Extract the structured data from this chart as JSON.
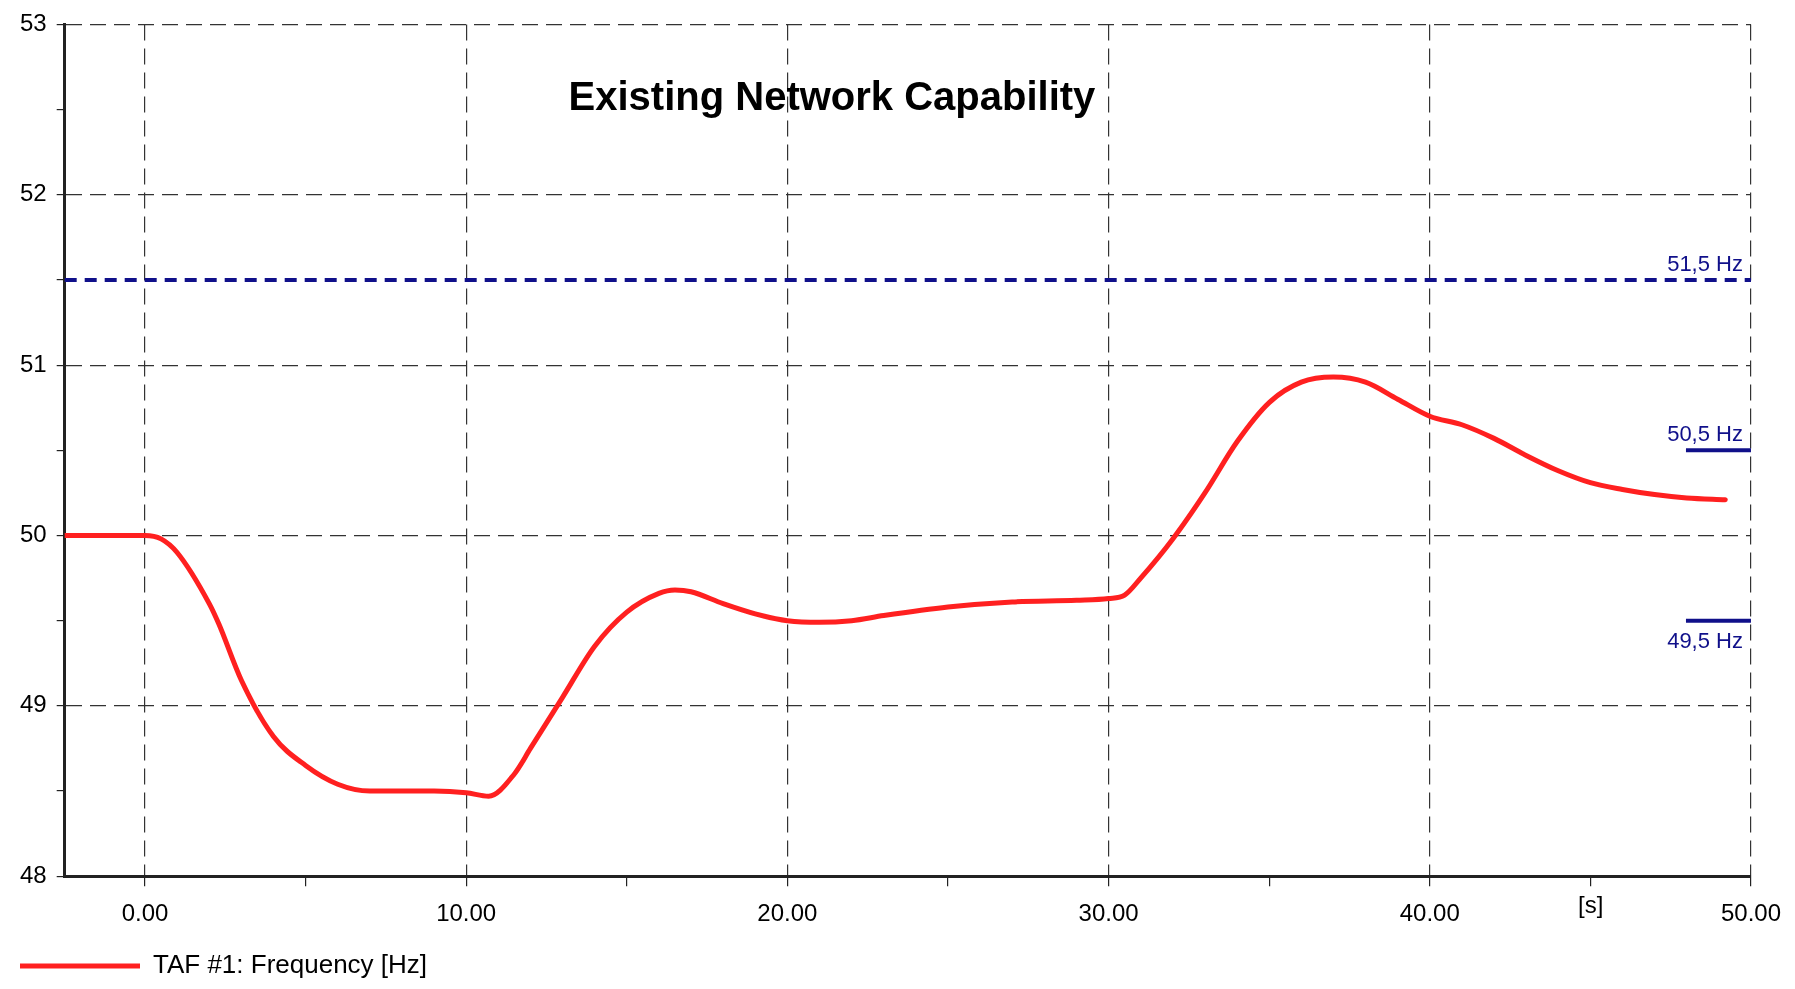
{
  "chart_data": {
    "type": "line",
    "title": "Existing Network Capability",
    "xlabel": "[s]",
    "x": [
      -2.5,
      0,
      0.5,
      1,
      2,
      2.3,
      3,
      4,
      5,
      6,
      7,
      8,
      9,
      10,
      10.7,
      11.5,
      12,
      13,
      14,
      15,
      16,
      16.5,
      17,
      18,
      19,
      20,
      21,
      22,
      23,
      25,
      27,
      29,
      30,
      30.5,
      31,
      32,
      33,
      34,
      35,
      36,
      37,
      38,
      39,
      40,
      41,
      42,
      43,
      44,
      45,
      46,
      47,
      48,
      49.2
    ],
    "series": [
      {
        "name": "TAF #1: Frequency [Hz]",
        "color": "#ff2020",
        "values": [
          50.0,
          50.0,
          49.98,
          49.9,
          49.6,
          49.48,
          49.15,
          48.82,
          48.65,
          48.54,
          48.5,
          48.5,
          48.5,
          48.49,
          48.47,
          48.6,
          48.75,
          49.05,
          49.35,
          49.55,
          49.66,
          49.68,
          49.67,
          49.6,
          49.54,
          49.5,
          49.49,
          49.5,
          49.53,
          49.58,
          49.61,
          49.62,
          49.63,
          49.65,
          49.75,
          49.98,
          50.25,
          50.55,
          50.78,
          50.9,
          50.93,
          50.9,
          50.8,
          50.7,
          50.65,
          50.57,
          50.47,
          50.38,
          50.31,
          50.27,
          50.24,
          50.22,
          50.21
        ]
      }
    ],
    "xlim": [
      -2.5,
      50
    ],
    "xticks": [
      {
        "value": 0,
        "label": "0.00"
      },
      {
        "value": 5,
        "label": null
      },
      {
        "value": 10,
        "label": "10.00"
      },
      {
        "value": 15,
        "label": null
      },
      {
        "value": 20,
        "label": "20.00"
      },
      {
        "value": 25,
        "label": null
      },
      {
        "value": 30,
        "label": "30.00"
      },
      {
        "value": 35,
        "label": null
      },
      {
        "value": 40,
        "label": "40.00"
      },
      {
        "value": 45,
        "label": null
      },
      {
        "value": 50,
        "label": "50.00"
      }
    ],
    "ylim": [
      48,
      53
    ],
    "yticks": [
      48,
      {
        "value": 48.5,
        "label": null
      },
      49,
      {
        "value": 49.5,
        "label": null
      },
      50,
      {
        "value": 50.5,
        "label": null
      },
      51,
      {
        "value": 51.5,
        "label": null
      },
      52,
      {
        "value": 52.5,
        "label": null
      },
      53
    ],
    "ref_lines": [
      {
        "axis": "y",
        "value": 51.5,
        "label": "51,5 Hz",
        "color": "#10108a",
        "line_style": "dashed"
      },
      {
        "axis": "y",
        "value": 50.5,
        "label": "50,5 Hz",
        "color": "#10108a",
        "line_style": "solid"
      },
      {
        "axis": "y",
        "value": 49.5,
        "label": "49,5 Hz",
        "color": "#10108a",
        "line_style": "solid"
      }
    ],
    "grid": true,
    "legend": "bottom left",
    "marker": "none",
    "line_style": "solid"
  }
}
